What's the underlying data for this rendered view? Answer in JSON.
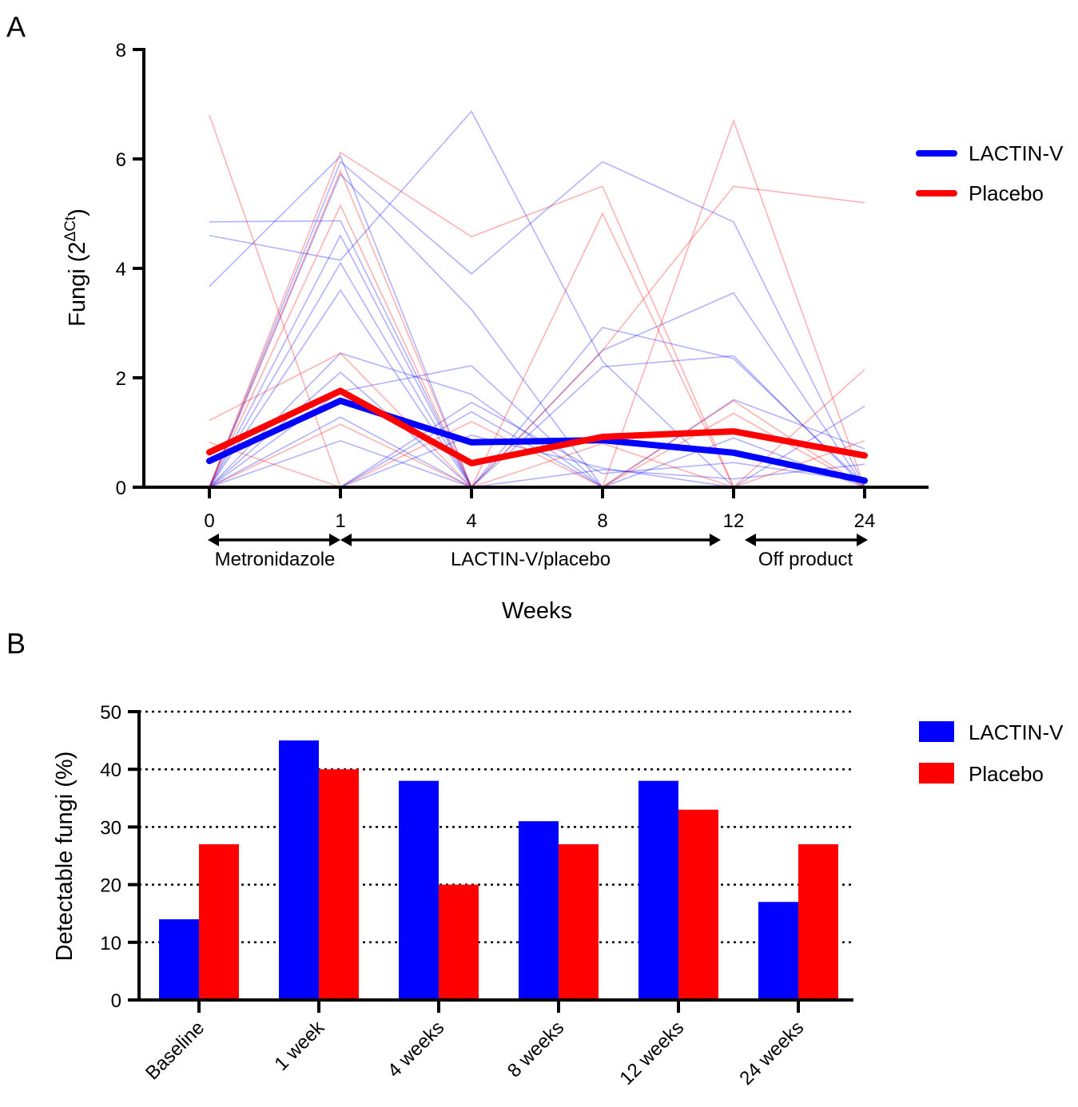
{
  "chart_data": [
    {
      "panel": "A",
      "type": "line",
      "ylabel": "Fungi (2",
      "ylabel_sup": "ΔCt",
      "ylabel_close": ")",
      "xlabel": "Weeks",
      "x": [
        0,
        1,
        4,
        8,
        12,
        24
      ],
      "x_tick_labels": [
        "0",
        "1",
        "4",
        "8",
        "12",
        "24"
      ],
      "ylim": [
        0,
        8
      ],
      "y_ticks": [
        0,
        2,
        4,
        6,
        8
      ],
      "y_tick_labels": [
        "0",
        "2",
        "4",
        "6",
        "8"
      ],
      "grid": false,
      "legend_position": "right",
      "phases": [
        {
          "label": "Metronidazole",
          "from": 0,
          "to": 1
        },
        {
          "label": "LACTIN-V/placebo",
          "from": 1,
          "to": 12
        },
        {
          "label": "Off product",
          "from": 12,
          "to": 24
        }
      ],
      "series": [
        {
          "name": "LACTIN-V",
          "color": "#0000ff",
          "values": [
            0.48,
            1.58,
            0.82,
            0.86,
            0.63,
            0.12
          ]
        },
        {
          "name": "Placebo",
          "color": "#ff0000",
          "values": [
            0.64,
            1.76,
            0.44,
            0.92,
            1.02,
            0.58
          ]
        }
      ],
      "individual_series": [
        {
          "group": "LACTIN-V",
          "values": [
            4.85,
            4.87,
            0,
            0,
            0,
            0
          ]
        },
        {
          "group": "LACTIN-V",
          "values": [
            4.6,
            4.15,
            6.87,
            2.3,
            0,
            0
          ]
        },
        {
          "group": "LACTIN-V",
          "values": [
            3.67,
            6.05,
            0,
            0,
            0,
            0
          ]
        },
        {
          "group": "LACTIN-V",
          "values": [
            0,
            5.95,
            3.9,
            5.95,
            4.85,
            0
          ]
        },
        {
          "group": "LACTIN-V",
          "values": [
            0,
            5.72,
            3.25,
            0,
            0,
            0
          ]
        },
        {
          "group": "LACTIN-V",
          "values": [
            0,
            4.6,
            0,
            2.92,
            2.35,
            0.05
          ]
        },
        {
          "group": "LACTIN-V",
          "values": [
            0,
            4.1,
            0,
            2.5,
            3.55,
            0
          ]
        },
        {
          "group": "LACTIN-V",
          "values": [
            0,
            3.6,
            0,
            0,
            0,
            0
          ]
        },
        {
          "group": "LACTIN-V",
          "values": [
            0,
            2.45,
            1.7,
            0,
            1.6,
            0.7
          ]
        },
        {
          "group": "LACTIN-V",
          "values": [
            0,
            2.1,
            0,
            2.2,
            2.4,
            0
          ]
        },
        {
          "group": "LACTIN-V",
          "values": [
            0,
            1.75,
            2.22,
            0,
            0,
            1.48
          ]
        },
        {
          "group": "LACTIN-V",
          "values": [
            0,
            1.28,
            0,
            0,
            0,
            0
          ]
        },
        {
          "group": "LACTIN-V",
          "values": [
            0,
            0.85,
            0,
            0,
            0,
            0
          ]
        },
        {
          "group": "LACTIN-V",
          "values": [
            0,
            0,
            1.55,
            0.25,
            0.45,
            0.1
          ]
        },
        {
          "group": "LACTIN-V",
          "values": [
            0,
            0,
            1.38,
            0,
            0,
            0
          ]
        },
        {
          "group": "LACTIN-V",
          "values": [
            0,
            0,
            0.95,
            0.35,
            0,
            0
          ]
        },
        {
          "group": "LACTIN-V",
          "values": [
            0,
            0,
            0,
            0.32,
            0.15,
            0.42
          ]
        },
        {
          "group": "LACTIN-V",
          "values": [
            0,
            0,
            0,
            0,
            0.9,
            0
          ]
        },
        {
          "group": "LACTIN-V",
          "values": [
            0,
            0,
            0,
            0,
            0,
            0
          ]
        },
        {
          "group": "Placebo",
          "values": [
            6.8,
            0,
            0,
            0,
            0,
            0
          ]
        },
        {
          "group": "Placebo",
          "values": [
            0,
            6.12,
            4.58,
            5.5,
            0,
            0
          ]
        },
        {
          "group": "Placebo",
          "values": [
            0,
            5.78,
            0,
            0,
            6.7,
            0
          ]
        },
        {
          "group": "Placebo",
          "values": [
            0,
            5.15,
            0,
            5.0,
            0,
            0
          ]
        },
        {
          "group": "Placebo",
          "values": [
            0,
            0,
            0,
            2.5,
            5.5,
            5.2
          ]
        },
        {
          "group": "Placebo",
          "values": [
            1.22,
            2.45,
            0,
            0,
            0,
            0
          ]
        },
        {
          "group": "Placebo",
          "values": [
            0.82,
            0,
            0,
            0,
            0,
            0
          ]
        },
        {
          "group": "Placebo",
          "values": [
            0,
            1.15,
            0,
            0,
            0,
            2.15
          ]
        },
        {
          "group": "Placebo",
          "values": [
            0,
            0,
            1.2,
            0,
            1.35,
            0
          ]
        },
        {
          "group": "Placebo",
          "values": [
            0,
            0,
            0,
            0.8,
            0,
            0.85
          ]
        },
        {
          "group": "Placebo",
          "values": [
            0,
            0,
            0,
            0,
            1.58,
            0
          ]
        },
        {
          "group": "Placebo",
          "values": [
            0,
            0,
            0,
            0,
            0,
            0
          ]
        }
      ]
    },
    {
      "panel": "B",
      "type": "bar",
      "ylabel": "Detectable fungi (%)",
      "xlabel": "",
      "categories": [
        "Baseline",
        "1 week",
        "4 weeks",
        "8 weeks",
        "12 weeks",
        "24 weeks"
      ],
      "ylim": [
        0,
        50
      ],
      "y_ticks": [
        0,
        10,
        20,
        30,
        40,
        50
      ],
      "y_tick_labels": [
        "0",
        "10",
        "20",
        "30",
        "40",
        "50"
      ],
      "grid": true,
      "grid_style": "dotted horizontal",
      "legend_position": "right",
      "series": [
        {
          "name": "LACTIN-V",
          "color": "#0000ff",
          "values": [
            14,
            45,
            38,
            31,
            38,
            17
          ]
        },
        {
          "name": "Placebo",
          "color": "#ff0000",
          "values": [
            27,
            40,
            20,
            27,
            33,
            27
          ]
        }
      ]
    }
  ]
}
